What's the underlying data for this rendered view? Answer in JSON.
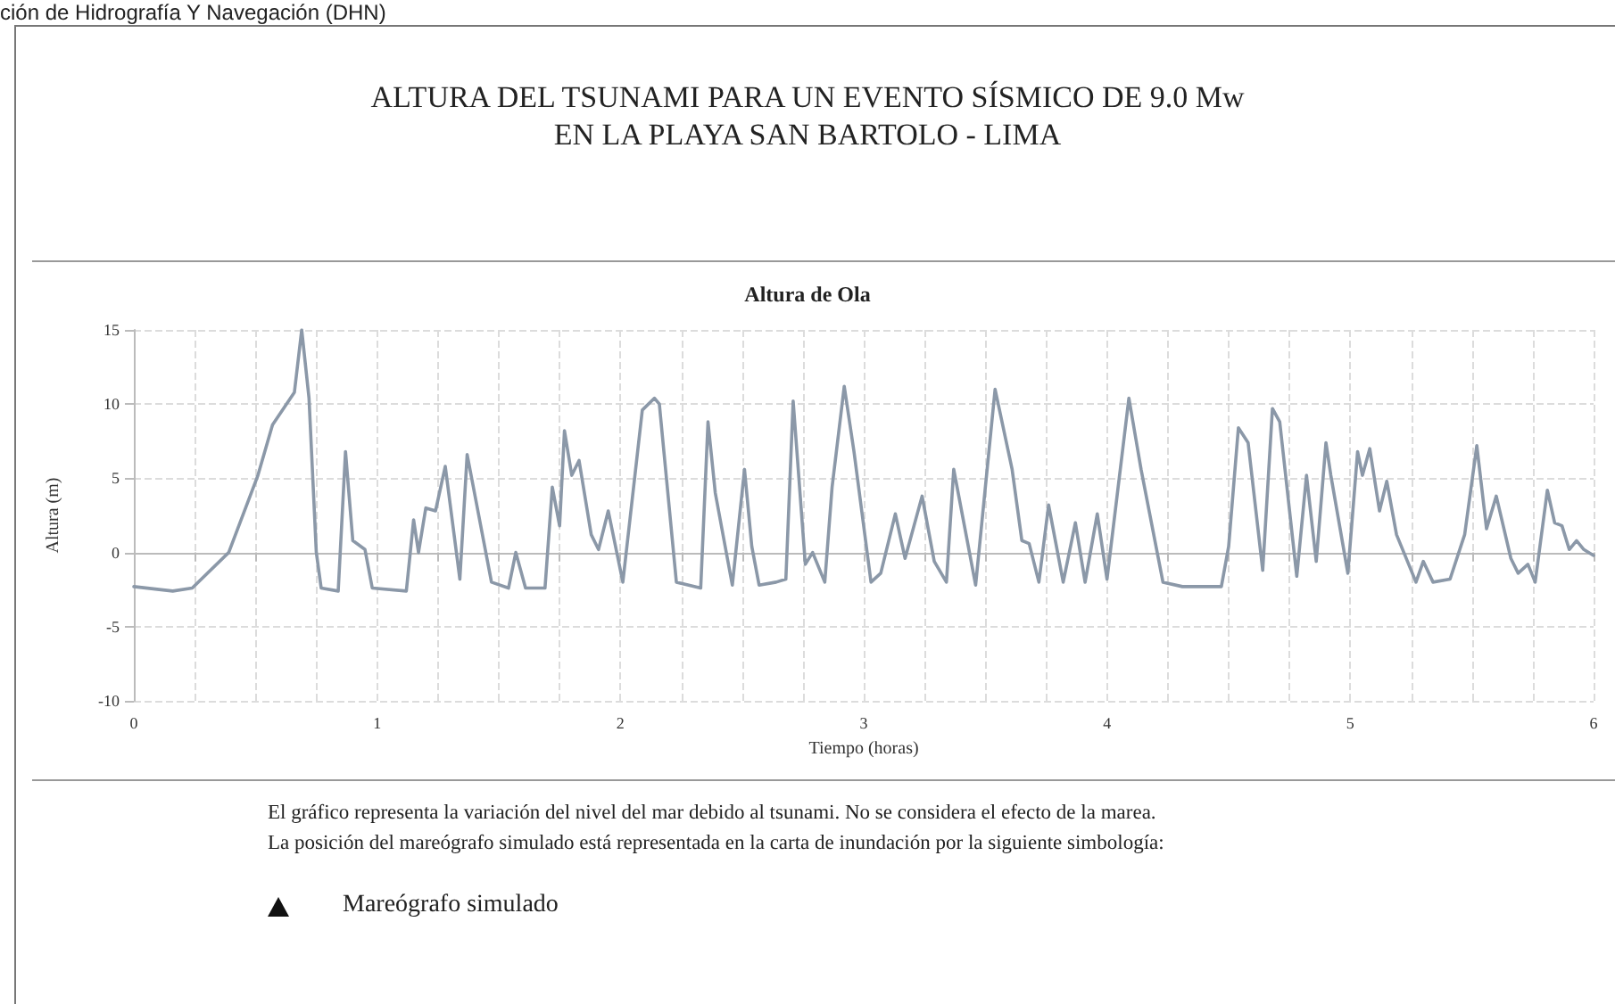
{
  "chart_data": {
    "type": "line",
    "title": "ALTURA DEL TSUNAMI PARA UN EVENTO SÍSMICO DE 9.0 Mw\nEN LA PLAYA  SAN BARTOLO - LIMA",
    "subtitle": "Altura de Ola",
    "xlabel": "Tiempo (horas)",
    "ylabel": "Altura (m)",
    "annotations": [
      "ción de Hidrografía Y Navegación (DHN)",
      "El gráfico representa la variación del nivel del mar debido al tsunami. No se considera el efecto de la marea.",
      "La posición del mareógrafo simulado está representada en la carta de inundación por la siguiente simbología:",
      "Mareógrafo simulado"
    ],
    "x": [
      0,
      0.16,
      0.24,
      0.39,
      0.51,
      0.57,
      0.66,
      0.69,
      0.72,
      0.75,
      0.77,
      0.84,
      0.87,
      0.9,
      0.95,
      0.98,
      1.12,
      1.15,
      1.17,
      1.2,
      1.24,
      1.28,
      1.34,
      1.37,
      1.47,
      1.54,
      1.57,
      1.61,
      1.69,
      1.72,
      1.75,
      1.77,
      1.8,
      1.83,
      1.88,
      1.91,
      1.95,
      2.01,
      2.09,
      2.14,
      2.16,
      2.23,
      2.33,
      2.36,
      2.39,
      2.46,
      2.51,
      2.54,
      2.57,
      2.64,
      2.68,
      2.71,
      2.76,
      2.79,
      2.84,
      2.87,
      2.92,
      2.96,
      3.03,
      3.07,
      3.13,
      3.17,
      3.24,
      3.29,
      3.34,
      3.37,
      3.46,
      3.54,
      3.61,
      3.65,
      3.68,
      3.72,
      3.76,
      3.82,
      3.87,
      3.91,
      3.96,
      4.0,
      4.09,
      4.14,
      4.23,
      4.31,
      4.47,
      4.5,
      4.54,
      4.58,
      4.64,
      4.68,
      4.71,
      4.78,
      4.82,
      4.86,
      4.9,
      4.92,
      4.99,
      5.03,
      5.05,
      5.08,
      5.12,
      5.15,
      5.19,
      5.27,
      5.3,
      5.34,
      5.41,
      5.47,
      5.52,
      5.56,
      5.6,
      5.66,
      5.69,
      5.73,
      5.76,
      5.81,
      5.84,
      5.87,
      5.9,
      5.93,
      5.96,
      6.0
    ],
    "series": [
      {
        "color": "#8b98a8",
        "values": [
          -2.3,
          -2.6,
          -2.4,
          0,
          5.2,
          8.6,
          10.8,
          15,
          10.4,
          0,
          -2.4,
          -2.6,
          6.8,
          0.8,
          0.2,
          -2.4,
          -2.6,
          2.2,
          0,
          3,
          2.8,
          5.8,
          -1.8,
          6.6,
          -2,
          -2.4,
          0,
          -2.4,
          -2.4,
          4.4,
          1.8,
          8.2,
          5.2,
          6.2,
          1.2,
          0.2,
          2.8,
          -2,
          9.6,
          10.4,
          10,
          -2,
          -2.4,
          8.8,
          4,
          -2.2,
          5.6,
          0.4,
          -2.2,
          -2,
          -1.8,
          10.2,
          -0.8,
          0,
          -2,
          4.4,
          11.2,
          6.8,
          -2,
          -1.4,
          2.6,
          -0.4,
          3.8,
          -0.6,
          -2,
          5.6,
          -2.2,
          11,
          5.6,
          0.8,
          0.6,
          -2,
          3.2,
          -2,
          2,
          -2,
          2.6,
          -1.8,
          10.4,
          5.6,
          -2,
          -2.3,
          -2.3,
          0.4,
          8.4,
          7.4,
          -1.2,
          9.7,
          8.8,
          -1.6,
          5.2,
          -0.6,
          7.4,
          5.2,
          -1.4,
          6.8,
          5.2,
          7,
          2.8,
          4.8,
          1.2,
          -2,
          -0.6,
          -2,
          -1.8,
          1.2,
          7.2,
          1.6,
          3.8,
          -0.4,
          -1.4,
          -0.8,
          -2,
          4.2,
          2,
          1.8,
          0.2,
          0.8,
          0.2,
          -0.2
        ]
      }
    ],
    "xlim": [
      0,
      6
    ],
    "xticks": [
      0,
      {
        "value": 0.25,
        "label": null
      },
      {
        "value": 0.5,
        "label": null
      },
      {
        "value": 0.75,
        "label": null
      },
      1,
      {
        "value": 1.25,
        "label": null
      },
      {
        "value": 1.5,
        "label": null
      },
      {
        "value": 1.75,
        "label": null
      },
      2,
      {
        "value": 2.25,
        "label": null
      },
      {
        "value": 2.5,
        "label": null
      },
      {
        "value": 2.75,
        "label": null
      },
      3,
      {
        "value": 3.25,
        "label": null
      },
      {
        "value": 3.5,
        "label": null
      },
      {
        "value": 3.75,
        "label": null
      },
      4,
      {
        "value": 4.25,
        "label": null
      },
      {
        "value": 4.5,
        "label": null
      },
      {
        "value": 4.75,
        "label": null
      },
      5,
      {
        "value": 5.25,
        "label": null
      },
      {
        "value": 5.5,
        "label": null
      },
      {
        "value": 5.75,
        "label": null
      },
      6
    ],
    "ylim": [
      -10,
      15
    ],
    "yticks": [
      -10,
      -5,
      0,
      5,
      10,
      15
    ],
    "grid": true,
    "marker": "none",
    "line_style": "solid"
  }
}
